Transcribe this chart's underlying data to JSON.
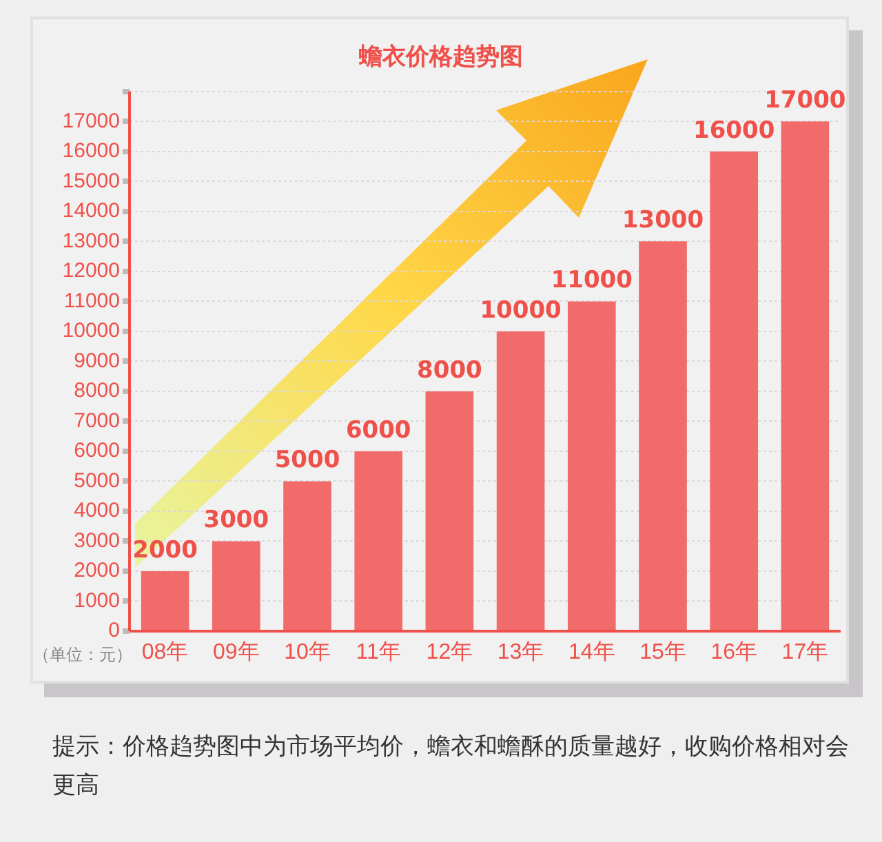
{
  "chart_data": {
    "type": "bar",
    "title": "蟾衣价格趋势图",
    "ylabel": "（单位：元）",
    "categories": [
      "08年",
      "09年",
      "10年",
      "11年",
      "12年",
      "13年",
      "14年",
      "15年",
      "16年",
      "17年"
    ],
    "values": [
      2000,
      3000,
      5000,
      6000,
      8000,
      10000,
      11000,
      13000,
      16000,
      17000
    ],
    "color": "#f26b6b",
    "ylim": [
      0,
      18000
    ],
    "yticks": [
      0,
      1000,
      2000,
      3000,
      4000,
      5000,
      6000,
      7000,
      8000,
      9000,
      10000,
      11000,
      12000,
      13000,
      14000,
      15000,
      16000,
      17000,
      {
        "value": 18000,
        "label": null
      }
    ],
    "grid": "y",
    "data_labels": true,
    "annotations": [
      "提示：价格趋势图中为市场平均价，蟾衣和蟾酥的质量越好，收购价格相对会更高"
    ]
  }
}
